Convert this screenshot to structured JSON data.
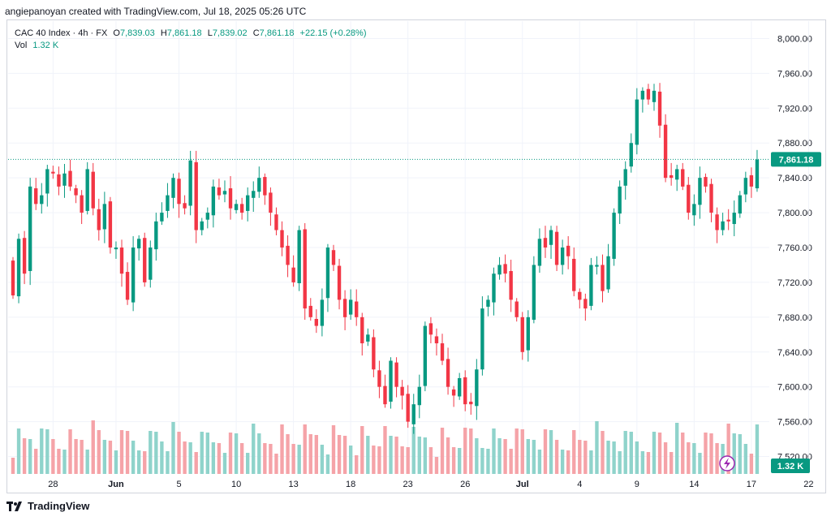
{
  "header": {
    "caption": "angiepanoyan created with TradingView.com, Jul 18, 2025 05:26 UTC"
  },
  "legend": {
    "symbol": "CAC 40 Index · 4h · FX",
    "o_label": "O",
    "o_value": "7,839.03",
    "h_label": "H",
    "h_value": "7,861.18",
    "l_label": "L",
    "l_value": "7,839.02",
    "c_label": "C",
    "c_value": "7,861.18",
    "change": "+22.15 (+0.28%)",
    "vol_label": "Vol",
    "vol_value": "1.32 K"
  },
  "footer": {
    "brand": "TradingView"
  },
  "colors": {
    "up": "#089981",
    "down": "#f23645",
    "vol_up": "#8fd3cb",
    "vol_down": "#f5a3a8",
    "grid": "#f0f3fa",
    "axis_text": "#131722"
  },
  "chart_data": {
    "type": "candlestick",
    "ylim": [
      7500,
      8020
    ],
    "price_ticks": [
      "7,520.00",
      "7,560.00",
      "7,600.00",
      "7,640.00",
      "7,680.00",
      "7,720.00",
      "7,760.00",
      "7,800.00",
      "7,840.00",
      "7,880.00",
      "7,920.00",
      "7,960.00",
      "8,000.00"
    ],
    "price_tick_values": [
      7520,
      7560,
      7600,
      7640,
      7680,
      7720,
      7760,
      7800,
      7840,
      7880,
      7920,
      7960,
      8000
    ],
    "x_ticks": [
      {
        "label": "28",
        "bar": 7
      },
      {
        "label": "Jun",
        "bar": 18
      },
      {
        "label": "5",
        "bar": 29
      },
      {
        "label": "10",
        "bar": 39
      },
      {
        "label": "13",
        "bar": 49
      },
      {
        "label": "18",
        "bar": 59
      },
      {
        "label": "23",
        "bar": 69
      },
      {
        "label": "26",
        "bar": 79
      },
      {
        "label": "Jul",
        "bar": 89
      },
      {
        "label": "4",
        "bar": 99
      },
      {
        "label": "9",
        "bar": 109
      },
      {
        "label": "14",
        "bar": 119
      },
      {
        "label": "17",
        "bar": 129
      },
      {
        "label": "22",
        "bar": 139
      }
    ],
    "last_price_label": "7,861.18",
    "last_price": 7861.18,
    "volume_label": "1.32 K",
    "close": [
      7705,
      7770,
      7730,
      7830,
      7810,
      7820,
      7850,
      7845,
      7830,
      7845,
      7830,
      7820,
      7800,
      7850,
      7805,
      7780,
      7810,
      7760,
      7760,
      7730,
      7700,
      7760,
      7770,
      7720,
      7760,
      7790,
      7800,
      7820,
      7840,
      7810,
      7805,
      7860,
      7780,
      7790,
      7800,
      7830,
      7820,
      7825,
      7805,
      7810,
      7800,
      7820,
      7825,
      7840,
      7820,
      7800,
      7780,
      7760,
      7740,
      7720,
      7780,
      7690,
      7680,
      7670,
      7700,
      7760,
      7740,
      7700,
      7680,
      7700,
      7680,
      7650,
      7660,
      7620,
      7600,
      7580,
      7630,
      7600,
      7590,
      7560,
      7580,
      7600,
      7670,
      7660,
      7650,
      7630,
      7600,
      7590,
      7610,
      7580,
      7580,
      7620,
      7690,
      7700,
      7730,
      7740,
      7730,
      7700,
      7680,
      7640,
      7680,
      7740,
      7770,
      7760,
      7780,
      7740,
      7760,
      7750,
      7710,
      7700,
      7690,
      7740,
      7740,
      7710,
      7750,
      7800,
      7830,
      7850,
      7880,
      7930,
      7940,
      7930,
      7940,
      7900,
      7840,
      7840,
      7850,
      7830,
      7800,
      7810,
      7840,
      7830,
      7800,
      7780,
      7790,
      7790,
      7800,
      7820,
      7840,
      7830,
      7861
    ]
  }
}
